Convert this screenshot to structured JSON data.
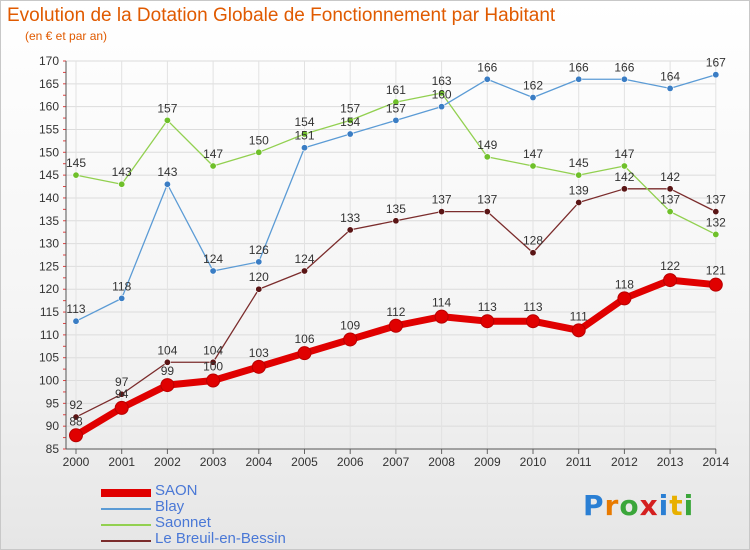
{
  "title": "Evolution de la Dotation Globale de Fonctionnement par Habitant",
  "subtitle": "(en € et par an)",
  "logo": {
    "letters": [
      "P",
      "r",
      "o",
      "x",
      "i",
      "t",
      "i"
    ],
    "colors": [
      "#2a7fd4",
      "#e87a00",
      "#3aa63a",
      "#d42020",
      "#2a7fd4",
      "#e8b000",
      "#3aa63a"
    ]
  },
  "chart_data": {
    "type": "line",
    "x": [
      "2000",
      "2001",
      "2002",
      "2003",
      "2004",
      "2005",
      "2006",
      "2007",
      "2008",
      "2009",
      "2010",
      "2011",
      "2012",
      "2013",
      "2014"
    ],
    "ylim": [
      85,
      170
    ],
    "yticks": [
      "85",
      "90",
      "95",
      "100",
      "105",
      "110",
      "115",
      "120",
      "125",
      "130",
      "135",
      "140",
      "145",
      "150",
      "155",
      "160",
      "165",
      "170"
    ],
    "grid": true,
    "legend": "bottom-left",
    "series": [
      {
        "name": "SAON",
        "color": "#e00000",
        "marker_color": "#e00000",
        "values": [
          88,
          94,
          99,
          100,
          103,
          106,
          109,
          112,
          114,
          113,
          113,
          111,
          118,
          122,
          121
        ],
        "labels": [
          "88",
          "94",
          "99",
          "100",
          "103",
          "106",
          "109",
          "112",
          "114",
          "113",
          "113",
          "111",
          "118",
          "122",
          "121"
        ]
      },
      {
        "name": "Blay",
        "color": "#5b9bd5",
        "marker_color": "#3a7dc4",
        "values": [
          113,
          118,
          143,
          124,
          126,
          151,
          154,
          157,
          160,
          166,
          162,
          166,
          166,
          164,
          167
        ],
        "labels": [
          "113",
          "118",
          "143",
          "124",
          "126",
          "151",
          "154",
          "157",
          "160",
          "166",
          "162",
          "166",
          "166",
          "164",
          "167"
        ]
      },
      {
        "name": "Saonnet",
        "color": "#92d050",
        "marker_color": "#6fc02a",
        "values": [
          145,
          143,
          157,
          147,
          150,
          154,
          157,
          161,
          163,
          149,
          147,
          145,
          147,
          137,
          132
        ],
        "labels": [
          "145",
          "143",
          "157",
          "147",
          "150",
          "154",
          "157",
          "161",
          "163",
          "149",
          "147",
          "145",
          "147",
          "137",
          "132"
        ]
      },
      {
        "name": "Le Breuil-en-Bessin",
        "color": "#7b2c2c",
        "marker_color": "#5a1515",
        "values": [
          92,
          97,
          104,
          104,
          120,
          124,
          133,
          135,
          137,
          137,
          128,
          139,
          142,
          142,
          137
        ],
        "labels": [
          "92",
          "97",
          "104",
          "104",
          "120",
          "124",
          "133",
          "135",
          "137",
          "137",
          "128",
          "139",
          "142",
          "142",
          "137"
        ]
      }
    ]
  }
}
